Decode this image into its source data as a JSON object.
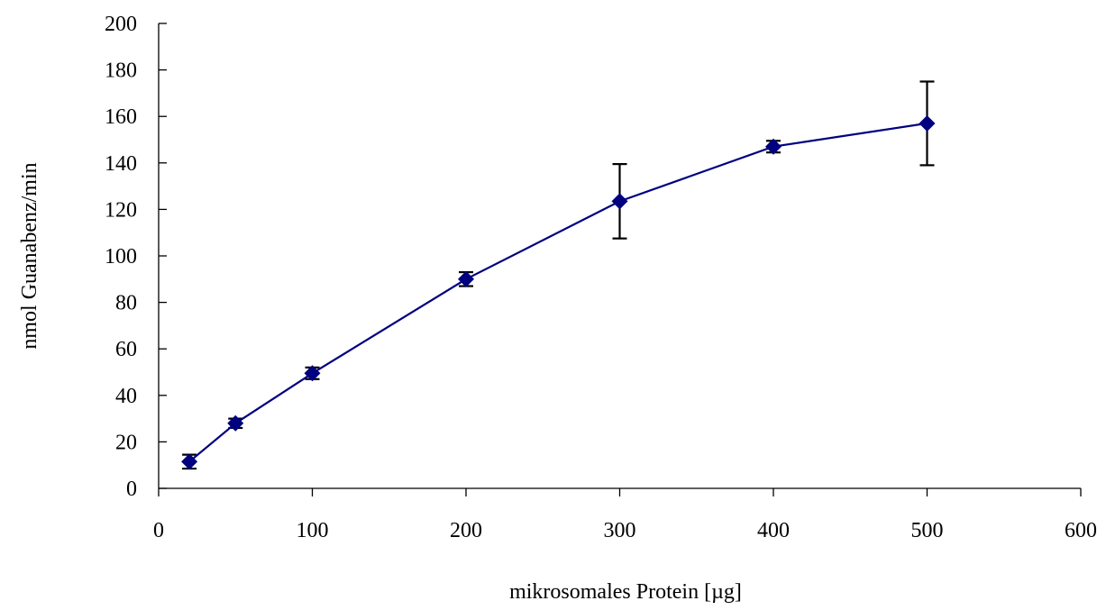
{
  "chart_data": {
    "type": "line",
    "title": "",
    "xlabel": "mikrosomales Protein [µg]",
    "ylabel": "nmol Guanabenz/min",
    "xlim": [
      0,
      600
    ],
    "ylim": [
      0,
      200
    ],
    "x_ticks": [
      0,
      100,
      200,
      300,
      400,
      500,
      600
    ],
    "y_ticks": [
      0,
      20,
      40,
      60,
      80,
      100,
      120,
      140,
      160,
      180,
      200
    ],
    "grid": false,
    "legend": "none",
    "series": [
      {
        "color": "#000080",
        "marker": "diamond",
        "points": [
          {
            "x": 20,
            "y": 11.5,
            "err": 3
          },
          {
            "x": 50,
            "y": 28,
            "err": 2
          },
          {
            "x": 100,
            "y": 49.5,
            "err": 2.5
          },
          {
            "x": 200,
            "y": 90,
            "err": 3
          },
          {
            "x": 300,
            "y": 123.5,
            "err": 16
          },
          {
            "x": 400,
            "y": 147,
            "err": 2.5
          },
          {
            "x": 500,
            "y": 157,
            "err": 18
          }
        ]
      }
    ]
  }
}
